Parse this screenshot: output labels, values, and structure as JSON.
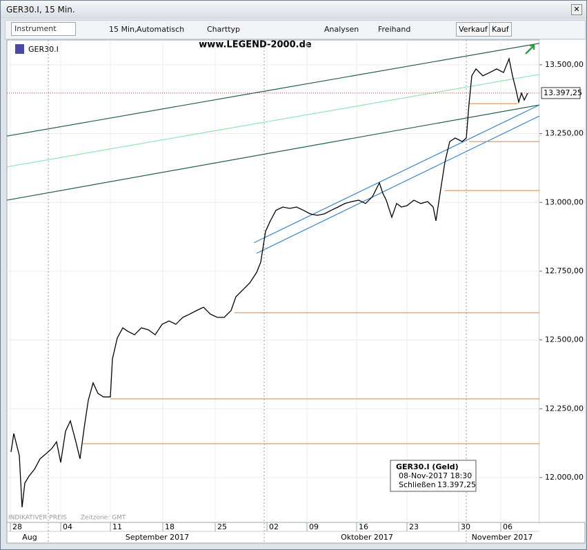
{
  "ui": {
    "window_title": "GER30.I, 15 Min.",
    "toolbar": {
      "instrument": "Instrument",
      "interval": "15 Min,",
      "mode": "Automatisch",
      "chart_type": "Charttyp",
      "analyses": "Analysen",
      "freehand": "Freihand",
      "sell": "Verkauf",
      "buy": "Kauf"
    },
    "footer_left": "INDIKATIVER PREIS",
    "timezone": "Zeitzone: GMT",
    "info_box": {
      "title": "GER30.I (Geld)",
      "datetime": "08-Nov-2017 18:30",
      "close_label": "Schließen",
      "close_value": "13.397,25"
    }
  },
  "chart_data": {
    "type": "line",
    "title": "www.LEGEND-2000.de",
    "legend": "GER30.I",
    "xlim": [
      0,
      77.2
    ],
    "ylim": [
      11837,
      13590
    ],
    "xticks": [
      {
        "value": 0.5,
        "label": "28"
      },
      {
        "value": 7.8,
        "label": "04"
      },
      {
        "value": 15.0,
        "label": "11"
      },
      {
        "value": 22.6,
        "label": "18"
      },
      {
        "value": 30.2,
        "label": "25"
      },
      {
        "value": 37.7,
        "label": "02"
      },
      {
        "value": 43.5,
        "label": "09"
      },
      {
        "value": 50.7,
        "label": "16"
      },
      {
        "value": 58.0,
        "label": "23"
      },
      {
        "value": 65.5,
        "label": "30"
      },
      {
        "value": 71.6,
        "label": "06"
      }
    ],
    "month_labels": [
      {
        "value": 3.3,
        "label": "Aug"
      },
      {
        "value": 21.8,
        "label": "September 2017"
      },
      {
        "value": 52.2,
        "label": "Oktober 2017"
      },
      {
        "value": 71.8,
        "label": "November 2017"
      }
    ],
    "month_bounds": [
      6.0,
      37.3,
      66.6
    ],
    "yticks": [
      {
        "value": 12000,
        "label": "12.000,00"
      },
      {
        "value": 12250,
        "label": "12.250,00"
      },
      {
        "value": 12500,
        "label": "12.500,00"
      },
      {
        "value": 12750,
        "label": "12.750,00"
      },
      {
        "value": 13000,
        "label": "13.000,00"
      },
      {
        "value": 13250,
        "label": "13.250,00"
      },
      {
        "value": 13500,
        "label": "13.500,00"
      }
    ],
    "grid": true,
    "series": [
      {
        "name": "GER30.I",
        "color": "#000000",
        "x": [
          0.6,
          1.0,
          1.8,
          2.2,
          2.6,
          3.2,
          4.0,
          4.8,
          5.6,
          6.5,
          7.2,
          7.8,
          8.5,
          9.2,
          10.0,
          10.6,
          11.2,
          11.8,
          12.5,
          13.2,
          14.0,
          15.0,
          15.3,
          16.0,
          16.8,
          17.5,
          18.5,
          19.5,
          20.5,
          21.5,
          22.5,
          23.5,
          24.5,
          25.5,
          26.5,
          27.5,
          28.5,
          29.5,
          30.5,
          31.5,
          32.5,
          33.2,
          34.2,
          35.2,
          36.2,
          36.8,
          37.5,
          38.2,
          39.0,
          40.0,
          41.0,
          42.0,
          43.0,
          44.0,
          45.0,
          46.0,
          47.0,
          48.0,
          49.0,
          50.0,
          51.0,
          52.0,
          53.0,
          54.0,
          54.5,
          55.0,
          55.8,
          56.5,
          57.2,
          58.0,
          59.0,
          60.0,
          61.0,
          61.8,
          62.2,
          62.8,
          63.5,
          64.2,
          65.0,
          66.0,
          66.6,
          67.0,
          67.4,
          68.0,
          69.0,
          70.0,
          71.0,
          72.0,
          72.8,
          73.3,
          73.8,
          74.2,
          74.6,
          75.0,
          75.5
        ],
        "values": [
          12093,
          12160,
          12080,
          11892,
          11980,
          12005,
          12030,
          12068,
          12085,
          12105,
          12130,
          12055,
          12168,
          12206,
          12130,
          12068,
          12180,
          12281,
          12344,
          12306,
          12293,
          12293,
          12431,
          12507,
          12544,
          12532,
          12519,
          12544,
          12537,
          12519,
          12557,
          12569,
          12557,
          12582,
          12594,
          12607,
          12619,
          12594,
          12582,
          12582,
          12607,
          12657,
          12682,
          12707,
          12745,
          12783,
          12895,
          12933,
          12971,
          12983,
          12978,
          12983,
          12971,
          12958,
          12953,
          12958,
          12971,
          12983,
          12996,
          13003,
          13008,
          12996,
          13021,
          13071,
          13033,
          13008,
          12946,
          12996,
          12983,
          12988,
          13008,
          12996,
          13003,
          12983,
          12933,
          13033,
          13146,
          13221,
          13234,
          13221,
          13234,
          13359,
          13460,
          13485,
          13460,
          13472,
          13485,
          13472,
          13522,
          13460,
          13410,
          13364,
          13397,
          13372,
          13397
        ]
      }
    ],
    "current_price": {
      "value": 13397.25,
      "label": "13.397,25"
    },
    "current_price_color": "#c0392b",
    "levels_color": "#d9823b",
    "levels": [
      {
        "x": [
          67.0,
          74.0
        ],
        "y": 13359
      },
      {
        "x": [
          67.0,
          77.2
        ],
        "y": 13221
      },
      {
        "x": [
          63.5,
          77.2
        ],
        "y": 13043
      },
      {
        "x": [
          33.0,
          77.2
        ],
        "y": 12599
      },
      {
        "x": [
          15.0,
          77.2
        ],
        "y": 12286
      },
      {
        "x": [
          11.0,
          77.2
        ],
        "y": 12123
      }
    ],
    "trendlines": [
      {
        "x": [
          0,
          77.2
        ],
        "y": [
          13241,
          13578
        ],
        "color": "#1f5f3f"
      },
      {
        "x": [
          0,
          77.2
        ],
        "y": [
          13008,
          13354
        ],
        "color": "#1f5f3f"
      },
      {
        "x": [
          0,
          77.2
        ],
        "y": [
          13129,
          13465
        ],
        "color": "#8fe3b0"
      },
      {
        "x": [
          35.8,
          77.2
        ],
        "y": [
          12853,
          13354
        ],
        "color": "#3a86c8"
      },
      {
        "x": [
          36.2,
          77.2
        ],
        "y": [
          12815,
          13314
        ],
        "color": "#3a86c8"
      }
    ]
  }
}
